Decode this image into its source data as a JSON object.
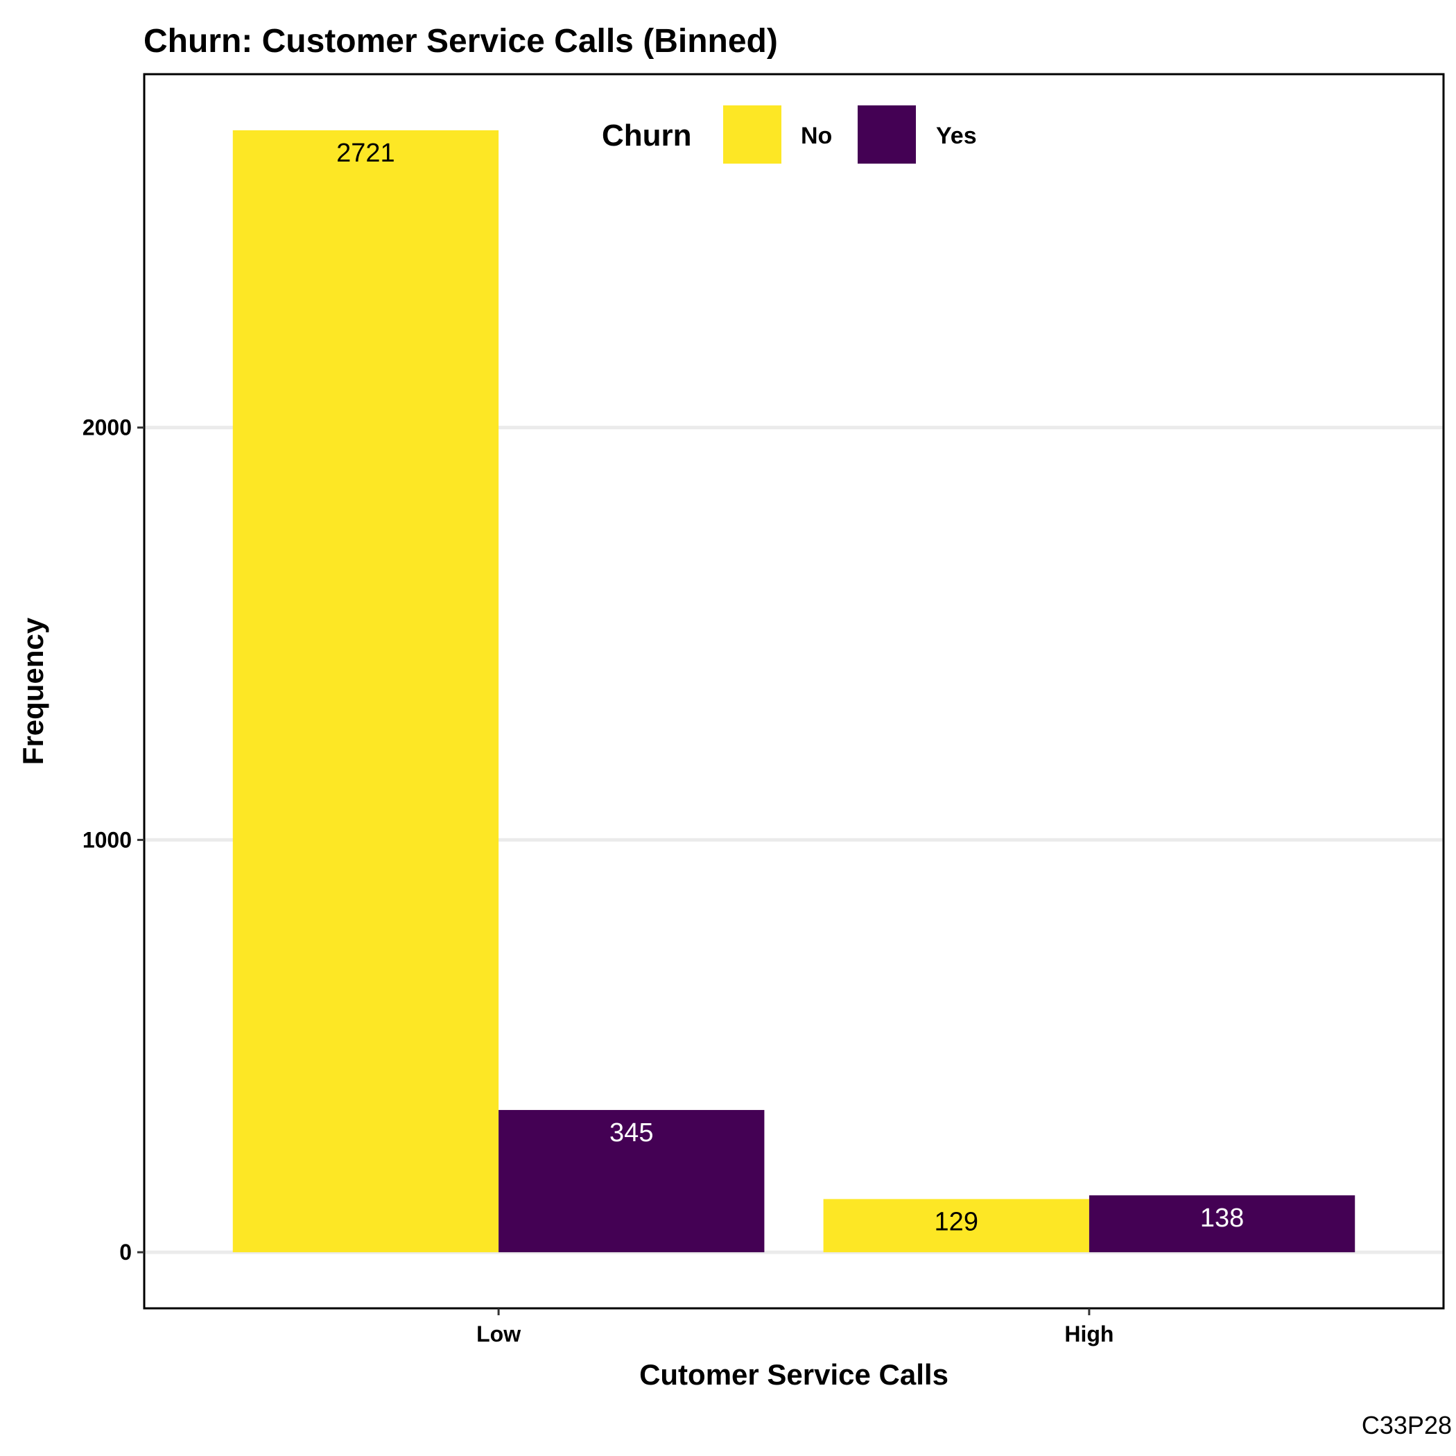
{
  "chart_data": {
    "type": "bar",
    "title": "Churn: Customer Service Calls (Binned)",
    "xlabel": "Cutomer Service Calls",
    "ylabel": "Frequency",
    "categories": [
      "Low",
      "High"
    ],
    "series": [
      {
        "name": "No",
        "values": [
          2721,
          129
        ],
        "color": "#FDE725"
      },
      {
        "name": "Yes",
        "values": [
          345,
          138
        ],
        "color": "#440154"
      }
    ],
    "data_label_colors": {
      "No": "#000000",
      "Yes": "#ffffff"
    },
    "yticks": [
      0,
      1000,
      2000
    ],
    "ytick_labels": [
      "0",
      "1000",
      "2000"
    ],
    "ylim": [
      -136,
      2857
    ],
    "grid": "horizontal",
    "legend": {
      "title": "Churn",
      "position": "top-center",
      "orientation": "horizontal"
    },
    "caption": "C33P28"
  }
}
